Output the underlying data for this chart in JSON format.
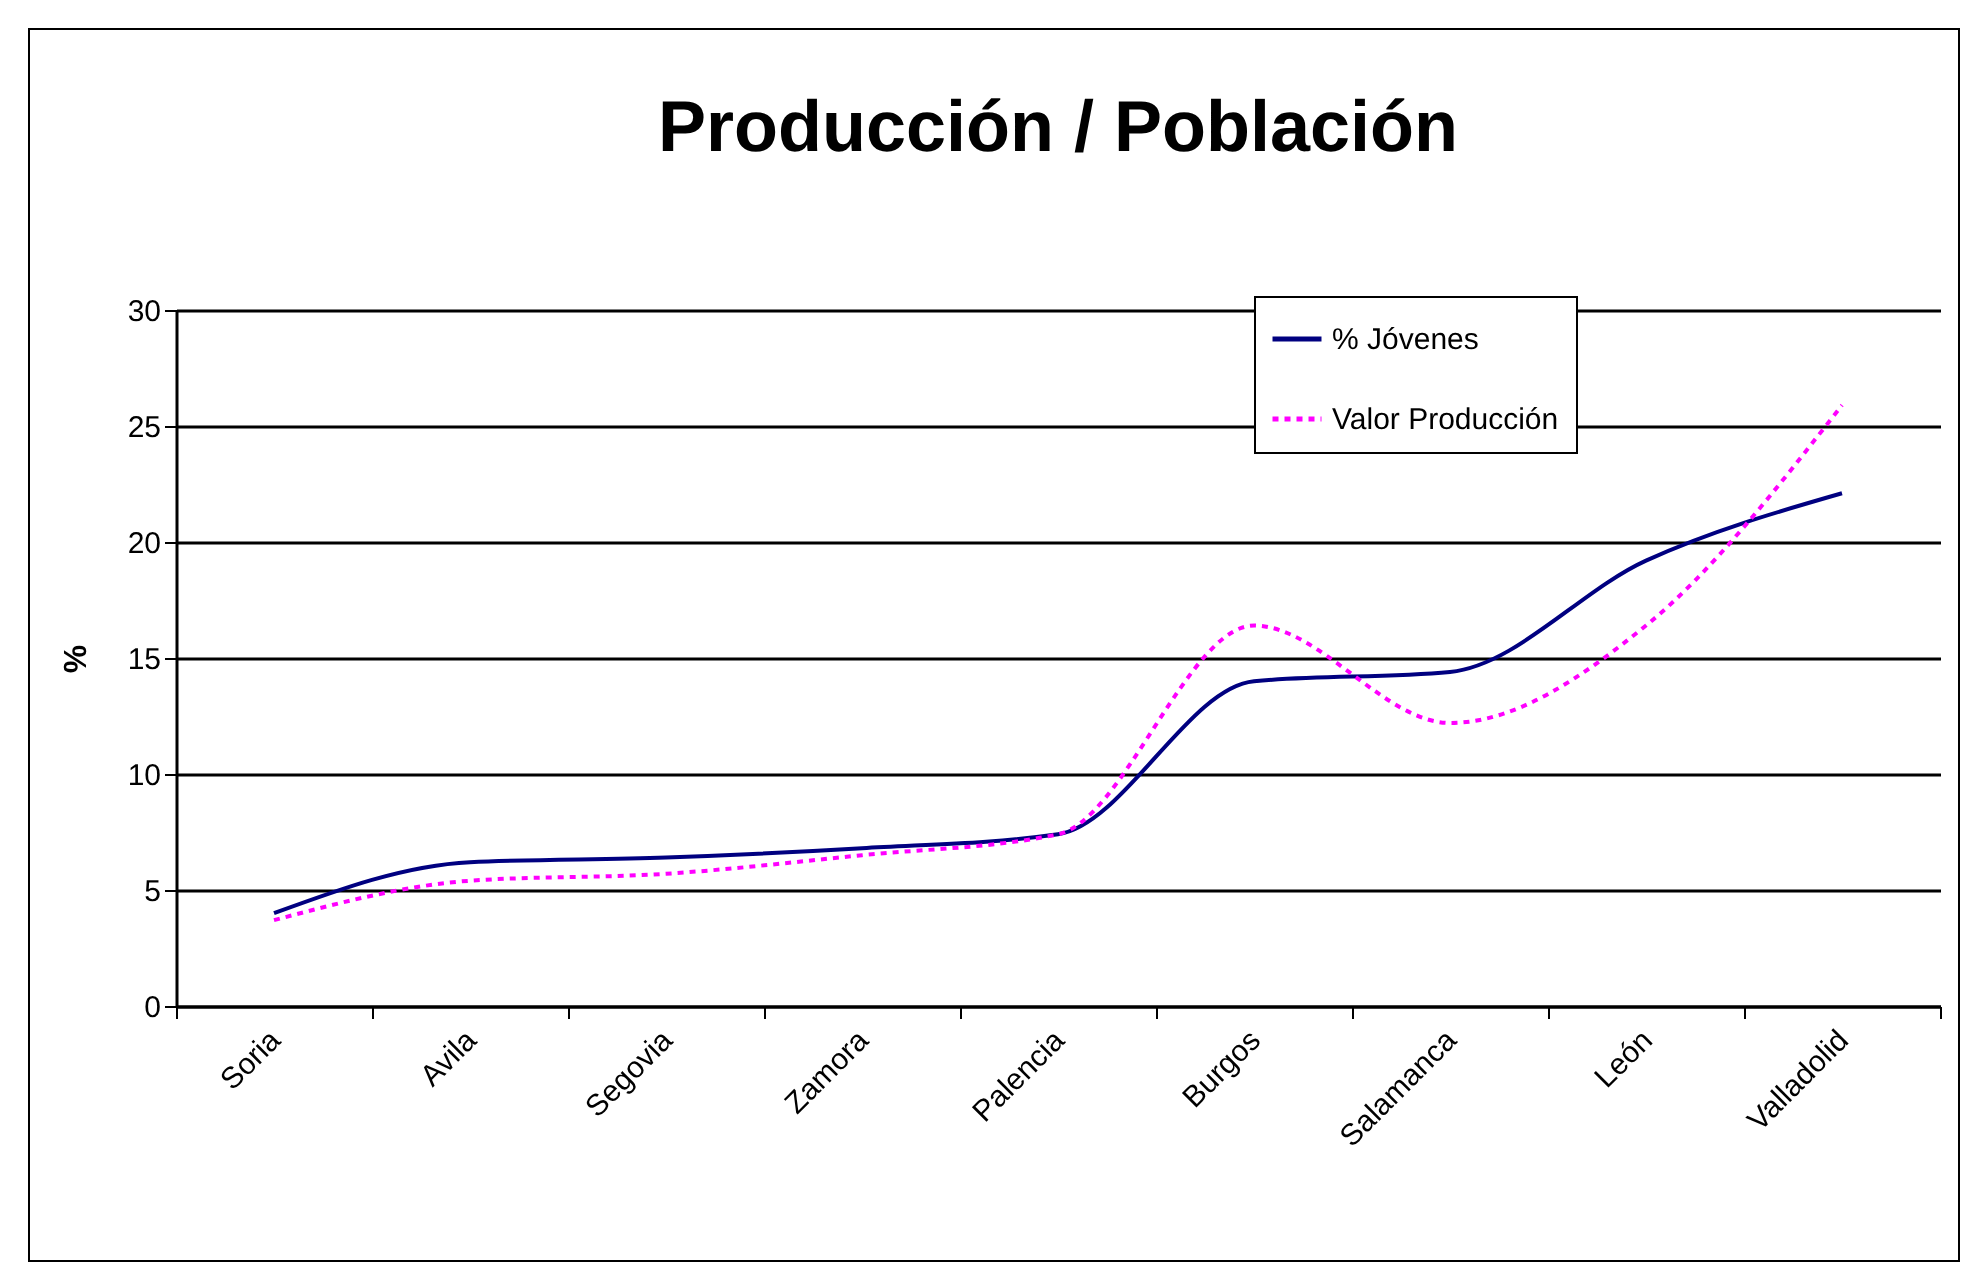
{
  "chart_data": {
    "type": "line",
    "title": "Producción / Población",
    "ylabel": "%",
    "categories": [
      "Soria",
      "Avila",
      "Segovia",
      "Zamora",
      "Palencia",
      "Burgos",
      "Salamanca",
      "León",
      "Valladolid"
    ],
    "series": [
      {
        "name": "% Jóvenes",
        "color": "#000080",
        "line_style": "solid",
        "values": [
          4.0,
          6.2,
          6.4,
          6.8,
          7.4,
          14.0,
          14.4,
          19.2,
          22.1
        ]
      },
      {
        "name": "Valor Producción",
        "color": "#ff00ff",
        "line_style": "dotted",
        "values": [
          3.7,
          5.4,
          5.7,
          6.5,
          7.4,
          16.4,
          12.2,
          16.4,
          25.9
        ]
      }
    ],
    "ylim": [
      0,
      30
    ],
    "yticks": [
      0,
      5,
      10,
      15,
      20,
      25,
      30
    ],
    "grid": "y",
    "legend": "top right"
  }
}
